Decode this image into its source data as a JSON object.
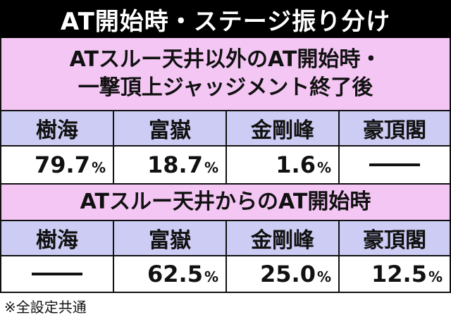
{
  "title": "AT開始時・ステージ振り分け",
  "sections": [
    {
      "heading_lines": [
        "ATスルー天井以外のAT開始時・",
        "一撃頂上ジャッジメント終了後"
      ],
      "stages": [
        "樹海",
        "富嶽",
        "金剛峰",
        "豪頂閣"
      ],
      "values": [
        {
          "num": "79.7",
          "unit": "%"
        },
        {
          "num": "18.7",
          "unit": "%"
        },
        {
          "num": "1.6",
          "unit": "%"
        },
        {
          "num": "",
          "unit": ""
        }
      ]
    },
    {
      "heading_lines": [
        "ATスルー天井からのAT開始時"
      ],
      "stages": [
        "樹海",
        "富嶽",
        "金剛峰",
        "豪頂閣"
      ],
      "values": [
        {
          "num": "",
          "unit": ""
        },
        {
          "num": "62.5",
          "unit": "%"
        },
        {
          "num": "25.0",
          "unit": "%"
        },
        {
          "num": "12.5",
          "unit": "%"
        }
      ]
    }
  ],
  "footnote": "※全設定共通"
}
